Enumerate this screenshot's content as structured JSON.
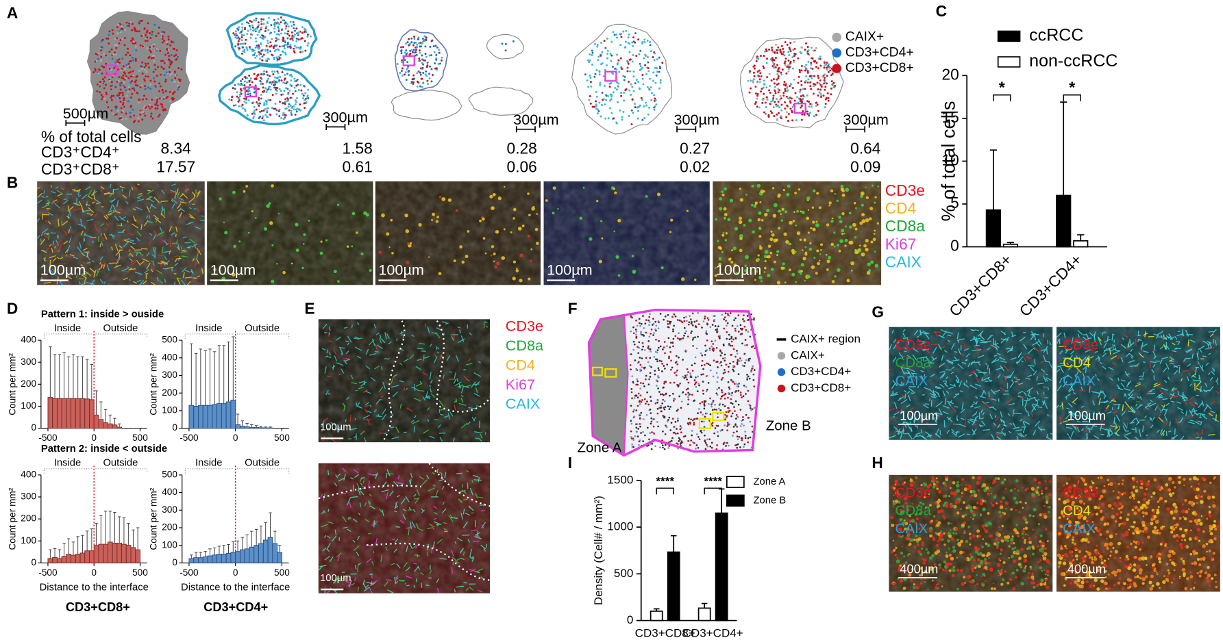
{
  "panel_labels": [
    "A",
    "B",
    "C",
    "D",
    "E",
    "F",
    "G",
    "H",
    "I"
  ],
  "panel_a": {
    "legend": [
      {
        "name": "CAIX+",
        "color": "#a8a8a8"
      },
      {
        "name": "CD3+CD4+",
        "color": "#1f6fc4"
      },
      {
        "name": "CD3+CD8+",
        "color": "#c8141e"
      }
    ],
    "scale_bars": [
      "500µm",
      "300µm",
      "300µm",
      "300µm",
      "300µm"
    ],
    "table": {
      "title": "% of total cells",
      "rows": [
        {
          "label": "CD3⁺CD4⁺",
          "values": [
            8.34,
            1.58,
            0.28,
            0.27,
            0.64
          ]
        },
        {
          "label": "CD3⁺CD8⁺",
          "values": [
            17.57,
            0.61,
            0.06,
            0.02,
            0.09
          ]
        }
      ]
    }
  },
  "panel_b": {
    "markers": [
      {
        "name": "CD3e",
        "color": "#e8141e"
      },
      {
        "name": "CD4",
        "color": "#f5b21e"
      },
      {
        "name": "CD8a",
        "color": "#22a63a"
      },
      {
        "name": "Ki67",
        "color": "#e23ce0"
      },
      {
        "name": "CAIX",
        "color": "#26b8e0"
      }
    ],
    "scale_bars": [
      "100µm",
      "100µm",
      "100µm",
      "100µm",
      "100µm"
    ]
  },
  "panel_d": {
    "pattern_titles": [
      "Pattern 1: inside > ouside",
      "Pattern 2: inside < outside"
    ],
    "groups": [
      "CD3+CD8+",
      "CD3+CD4+"
    ]
  },
  "panel_e": {
    "markers": [
      {
        "name": "CD3e",
        "color": "#e8141e"
      },
      {
        "name": "CD8a",
        "color": "#22a63a"
      },
      {
        "name": "CD4",
        "color": "#f5b21e"
      },
      {
        "name": "Ki67",
        "color": "#e23ce0"
      },
      {
        "name": "CAIX",
        "color": "#26b8e0"
      }
    ],
    "scale_bars": [
      "100µm",
      "100µm"
    ]
  },
  "panel_f": {
    "legend": [
      {
        "name": "CAIX+ region",
        "color": "#000000"
      },
      {
        "name": "CAIX+",
        "color": "#a8a8a8"
      },
      {
        "name": "CD3+CD4+",
        "color": "#1f6fc4"
      },
      {
        "name": "CD3+CD8+",
        "color": "#c8141e"
      }
    ],
    "zones": [
      "Zone A",
      "Zone B"
    ]
  },
  "panel_g": {
    "images": [
      {
        "markers": [
          {
            "name": "CD3e",
            "color": "#e8141e"
          },
          {
            "name": "CD8a",
            "color": "#22a63a"
          },
          {
            "name": "CAIX",
            "color": "#2a9fe0"
          }
        ],
        "scale_bar": "100µm"
      },
      {
        "markers": [
          {
            "name": "CD3e",
            "color": "#e8141e"
          },
          {
            "name": "CD4",
            "color": "#e8e020"
          },
          {
            "name": "CAIX",
            "color": "#2a9fe0"
          }
        ],
        "scale_bar": "100µm"
      }
    ]
  },
  "panel_h": {
    "images": [
      {
        "markers": [
          {
            "name": "CD3e",
            "color": "#e8141e"
          },
          {
            "name": "CD8a",
            "color": "#22a63a"
          },
          {
            "name": "CAIX",
            "color": "#2a9fe0"
          }
        ],
        "scale_bar": "400µm"
      },
      {
        "markers": [
          {
            "name": "CD3e",
            "color": "#e8141e"
          },
          {
            "name": "CD4",
            "color": "#e8e020"
          },
          {
            "name": "CAIX",
            "color": "#2a9fe0"
          }
        ],
        "scale_bar": "400µm"
      }
    ]
  },
  "chart_data": [
    {
      "type": "bar",
      "ylabel": "% of total cells",
      "categories": [
        "CD3+CD8+",
        "CD3+CD4+"
      ],
      "series": [
        {
          "name": "ccRCC",
          "color": "#000000",
          "values": [
            4.3,
            6.0
          ],
          "errors": [
            7.0,
            10.9
          ]
        },
        {
          "name": "non-ccRCC",
          "color": "#ffffff",
          "values": [
            0.3,
            0.7
          ],
          "errors": [
            0.2,
            0.7
          ]
        }
      ],
      "annotations": [
        "*",
        "*"
      ],
      "ylim": [
        0,
        20
      ],
      "yticks": [
        0,
        5,
        10,
        15,
        20
      ]
    },
    {
      "type": "histogram",
      "ylabel": "Count per mm²",
      "region_labels": [
        "Inside",
        "Outside"
      ],
      "color": "#c9605a",
      "bins": [
        -500,
        -450,
        -400,
        -350,
        -300,
        -250,
        -200,
        -150,
        -100,
        -50,
        0,
        50,
        100,
        150,
        200,
        250,
        300,
        350,
        400,
        450,
        500
      ],
      "values": [
        140,
        135,
        135,
        135,
        135,
        135,
        135,
        135,
        133,
        130,
        60,
        40,
        25,
        20,
        15,
        5,
        0,
        0,
        0,
        0
      ],
      "errors": [
        230,
        200,
        200,
        210,
        190,
        200,
        190,
        190,
        180,
        160,
        110,
        80,
        60,
        40,
        30,
        15,
        0,
        0,
        0,
        0
      ],
      "xlim": [
        -575,
        575
      ],
      "ylim": [
        0,
        400
      ],
      "xticks": [
        -500,
        0,
        500
      ],
      "yticks": [
        0,
        100,
        200,
        300,
        400
      ]
    },
    {
      "type": "histogram",
      "ylabel": "Count per mm²",
      "region_labels": [
        "Inside",
        "Outside"
      ],
      "color": "#5b8fc9",
      "bins": [
        -500,
        -450,
        -400,
        -350,
        -300,
        -250,
        -200,
        -150,
        -100,
        -50,
        0,
        50,
        100,
        150,
        200,
        250,
        300,
        350,
        400,
        450,
        500
      ],
      "values": [
        130,
        125,
        130,
        130,
        130,
        135,
        140,
        140,
        150,
        160,
        20,
        12,
        8,
        5,
        5,
        3,
        2,
        2,
        0,
        0
      ],
      "errors": [
        350,
        300,
        320,
        310,
        320,
        300,
        330,
        330,
        340,
        360,
        60,
        30,
        20,
        15,
        10,
        8,
        5,
        5,
        0,
        0
      ],
      "xlim": [
        -575,
        575
      ],
      "ylim": [
        0,
        500
      ],
      "xticks": [
        -500,
        0,
        500
      ],
      "yticks": [
        0,
        100,
        200,
        300,
        400,
        500
      ]
    },
    {
      "type": "histogram",
      "ylabel": "Count per mm²",
      "xlabel": "Distance to the interface",
      "region_labels": [
        "Inside",
        "Outside"
      ],
      "color": "#c9605a",
      "bins": [
        -500,
        -450,
        -400,
        -350,
        -300,
        -250,
        -200,
        -150,
        -100,
        -50,
        0,
        50,
        100,
        150,
        200,
        250,
        300,
        350,
        400,
        450,
        500
      ],
      "values": [
        20,
        25,
        20,
        30,
        40,
        35,
        40,
        45,
        55,
        55,
        80,
        85,
        85,
        95,
        90,
        90,
        85,
        80,
        70,
        60
      ],
      "errors": [
        40,
        40,
        40,
        60,
        70,
        60,
        80,
        80,
        90,
        100,
        100,
        130,
        150,
        140,
        140,
        120,
        120,
        100,
        80,
        100
      ],
      "xlim": [
        -575,
        575
      ],
      "ylim": [
        0,
        400
      ],
      "xticks": [
        -500,
        0,
        500
      ],
      "yticks": [
        0,
        100,
        200,
        300,
        400
      ]
    },
    {
      "type": "histogram",
      "ylabel": "Count per mm²",
      "xlabel": "Distance to the interface",
      "region_labels": [
        "Inside",
        "Outside"
      ],
      "color": "#5b8fc9",
      "bins": [
        -500,
        -450,
        -400,
        -350,
        -300,
        -250,
        -200,
        -150,
        -100,
        -50,
        0,
        50,
        100,
        150,
        200,
        250,
        300,
        350,
        400,
        450,
        500
      ],
      "values": [
        25,
        30,
        30,
        35,
        40,
        45,
        50,
        50,
        55,
        60,
        65,
        75,
        80,
        90,
        100,
        110,
        130,
        145,
        110,
        60
      ],
      "errors": [
        20,
        30,
        30,
        30,
        40,
        40,
        45,
        50,
        50,
        60,
        60,
        70,
        80,
        90,
        90,
        100,
        100,
        140,
        70,
        40
      ],
      "xlim": [
        -575,
        575
      ],
      "ylim": [
        0,
        500
      ],
      "xticks": [
        -500,
        0,
        500
      ],
      "yticks": [
        0,
        100,
        200,
        300,
        400,
        500
      ]
    },
    {
      "type": "bar",
      "ylabel": "Density (Cell# / mm²)",
      "categories": [
        "CD3+CD8+",
        "CD3+CD4+"
      ],
      "series": [
        {
          "name": "Zone A",
          "color": "#ffffff",
          "values": [
            100,
            133
          ],
          "errors": [
            25,
            50
          ]
        },
        {
          "name": "Zone B",
          "color": "#000000",
          "values": [
            733,
            1150
          ],
          "errors": [
            175,
            258
          ]
        }
      ],
      "annotations": [
        "****",
        "****"
      ],
      "ylim": [
        0,
        1500
      ],
      "yticks": [
        0,
        500,
        1000,
        1500
      ]
    }
  ]
}
